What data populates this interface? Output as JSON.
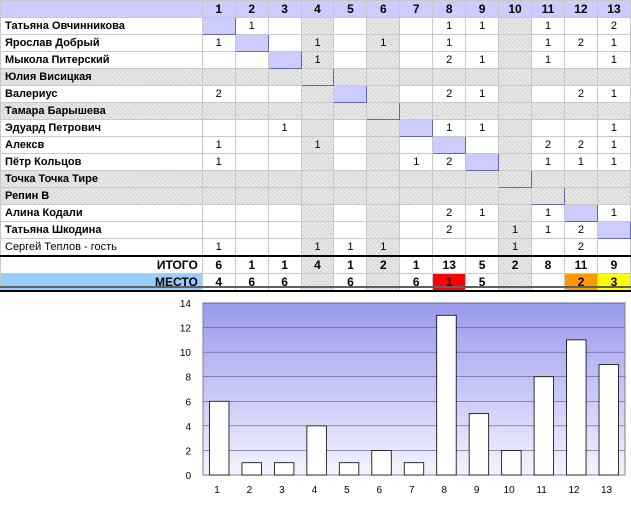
{
  "table": {
    "headers": [
      "1",
      "2",
      "3",
      "4",
      "5",
      "6",
      "7",
      "8",
      "9",
      "10",
      "11",
      "12",
      "13"
    ],
    "hatched_columns": [
      4,
      6,
      10
    ],
    "rows": [
      {
        "name": "Татьяна Овчинникова",
        "guest": false,
        "empty": false,
        "cells": [
          "",
          "1",
          "",
          "",
          "",
          "",
          "",
          "1",
          "1",
          "",
          "1",
          "",
          "2"
        ]
      },
      {
        "name": "Ярослав Добрый",
        "guest": false,
        "empty": false,
        "cells": [
          "1",
          "",
          "",
          "1",
          "",
          "1",
          "",
          "1",
          "",
          "",
          "1",
          "2",
          "1"
        ]
      },
      {
        "name": "Мыкола Питерский",
        "guest": false,
        "empty": false,
        "cells": [
          "",
          "",
          "",
          "1",
          "",
          "",
          "",
          "2",
          "1",
          "",
          "1",
          "",
          "1"
        ]
      },
      {
        "name": "Юлия Висицкая",
        "guest": false,
        "empty": true,
        "cells": [
          "",
          "",
          "",
          "",
          "",
          "",
          "",
          "",
          "",
          "",
          "",
          "",
          ""
        ]
      },
      {
        "name": "Валериус",
        "guest": false,
        "empty": false,
        "cells": [
          "2",
          "",
          "",
          "",
          "",
          "",
          "",
          "2",
          "1",
          "",
          "",
          "2",
          "1"
        ]
      },
      {
        "name": "Тамара Барышева",
        "guest": false,
        "empty": true,
        "cells": [
          "",
          "",
          "",
          "",
          "",
          "",
          "",
          "",
          "",
          "",
          "",
          "",
          ""
        ]
      },
      {
        "name": "Эдуард Петрович",
        "guest": false,
        "empty": false,
        "cells": [
          "",
          "",
          "1",
          "",
          "",
          "",
          "",
          "1",
          "1",
          "",
          "",
          "",
          "1"
        ]
      },
      {
        "name": "Алекcв",
        "guest": false,
        "empty": false,
        "cells": [
          "1",
          "",
          "",
          "1",
          "",
          "",
          "",
          "",
          "",
          "",
          "2",
          "2",
          "1"
        ]
      },
      {
        "name": "Пётр Кольцов",
        "guest": false,
        "empty": false,
        "cells": [
          "1",
          "",
          "",
          "",
          "",
          "",
          "1",
          "2",
          "",
          "",
          "1",
          "1",
          "1"
        ]
      },
      {
        "name": "Точка Точка Тире",
        "guest": false,
        "empty": true,
        "cells": [
          "",
          "",
          "",
          "",
          "",
          "",
          "",
          "",
          "",
          "",
          "",
          "",
          ""
        ]
      },
      {
        "name": "Репин В",
        "guest": false,
        "empty": true,
        "cells": [
          "",
          "",
          "",
          "",
          "",
          "",
          "",
          "",
          "",
          "",
          "",
          "",
          ""
        ]
      },
      {
        "name": "Алина Кодали",
        "guest": false,
        "empty": false,
        "cells": [
          "",
          "",
          "",
          "",
          "",
          "",
          "",
          "2",
          "1",
          "",
          "1",
          "",
          "1"
        ]
      },
      {
        "name": "Татьяна Шкодина",
        "guest": false,
        "empty": false,
        "cells": [
          "",
          "",
          "",
          "",
          "",
          "",
          "",
          "2",
          "",
          "1",
          "1",
          "2",
          ""
        ]
      },
      {
        "name": "Сергей Теплов - гость",
        "guest": true,
        "empty": false,
        "cells": [
          "1",
          "",
          "",
          "1",
          "1",
          "1",
          "",
          "",
          "",
          "1",
          "",
          "2",
          ""
        ]
      }
    ],
    "diagonal": [
      {
        "row": 0,
        "col": 1
      },
      {
        "row": 1,
        "col": 2
      },
      {
        "row": 2,
        "col": 3
      },
      {
        "row": 3,
        "col": 4
      },
      {
        "row": 4,
        "col": 5
      },
      {
        "row": 5,
        "col": 6
      },
      {
        "row": 6,
        "col": 7
      },
      {
        "row": 7,
        "col": 8
      },
      {
        "row": 8,
        "col": 9
      },
      {
        "row": 9,
        "col": 10
      },
      {
        "row": 10,
        "col": 11
      },
      {
        "row": 11,
        "col": 12
      },
      {
        "row": 12,
        "col": 13
      }
    ],
    "total_label": "ИТОГО",
    "totals": [
      "6",
      "1",
      "1",
      "4",
      "1",
      "2",
      "1",
      "13",
      "5",
      "2",
      "8",
      "11",
      "9"
    ],
    "place_label": "МЕСТО",
    "places": [
      "4",
      "6",
      "6",
      "",
      "6",
      "",
      "6",
      "1",
      "5",
      "",
      "",
      "2",
      "3"
    ],
    "place_colors": {
      "1": "#ff0000",
      "2": "#ff9900",
      "3": "#ffff00"
    }
  },
  "chart_data": {
    "type": "bar",
    "categories": [
      "1",
      "2",
      "3",
      "4",
      "5",
      "6",
      "7",
      "8",
      "9",
      "10",
      "11",
      "12",
      "13"
    ],
    "values": [
      6,
      1,
      1,
      4,
      1,
      2,
      1,
      13,
      5,
      2,
      8,
      11,
      9
    ],
    "ylim": [
      0,
      14
    ],
    "yticks": [
      0,
      2,
      4,
      6,
      8,
      10,
      12,
      14
    ],
    "title": "",
    "xlabel": "",
    "ylabel": "",
    "grid": true,
    "bar_color": "#ffffff",
    "plot_gradient": [
      "#9999ee",
      "#f4f4ff"
    ]
  }
}
